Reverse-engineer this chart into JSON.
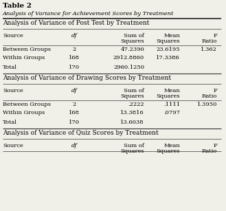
{
  "title": "Table 2",
  "subtitle": "Analysis of Variance for Achievement Scores by Treatment",
  "section1_title": "Analysis of Variance of Post Test by Treatment",
  "section2_title": "Analysis of Variance of Drawing Scores by Treatment",
  "section3_title": "Analysis of Variance of Quiz Scores by Treatment",
  "post_data": [
    [
      "Between Groups",
      "2",
      "47.2390",
      "23.6195",
      "1.362"
    ],
    [
      "Within Groups",
      "168",
      "2912.8860",
      "17.3386",
      ""
    ],
    [
      "Total",
      "170",
      "2960.1250",
      "",
      ""
    ]
  ],
  "drawing_data": [
    [
      "Between Groups",
      "2",
      ".2222",
      ".1111",
      "1.3950"
    ],
    [
      "Within Groups",
      "168",
      "13.3816",
      ".0797",
      ""
    ],
    [
      "Total",
      "170",
      "13.6038",
      "",
      ""
    ]
  ],
  "bg_color": "#f0efe8",
  "font_size": 6.0
}
